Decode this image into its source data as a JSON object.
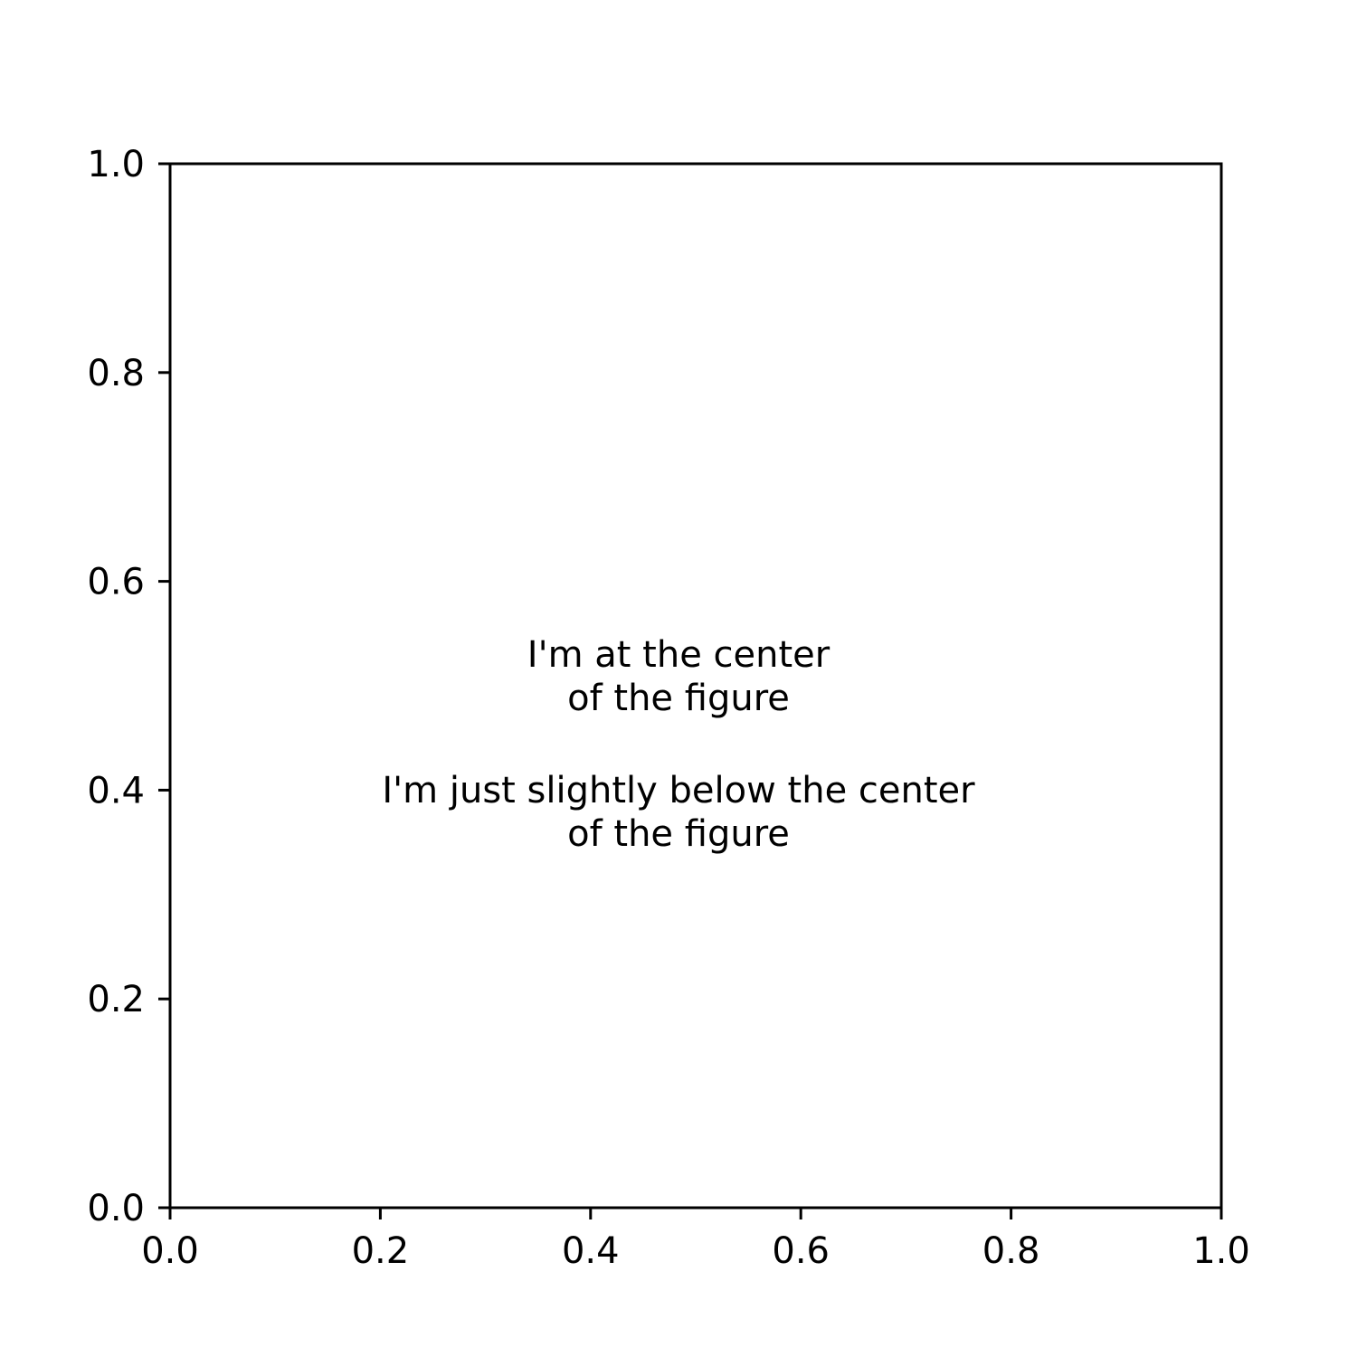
{
  "chart_data": {
    "type": "scatter",
    "title": "",
    "xlabel": "",
    "ylabel": "",
    "xlim": [
      0.0,
      1.0
    ],
    "ylim": [
      0.0,
      1.0
    ],
    "grid": false,
    "xticks": [
      0.0,
      0.2,
      0.4,
      0.6,
      0.8,
      1.0
    ],
    "xtick_labels": [
      "0.0",
      "0.2",
      "0.4",
      "0.6",
      "0.8",
      "1.0"
    ],
    "yticks": [
      0.0,
      0.2,
      0.4,
      0.6,
      0.8,
      1.0
    ],
    "ytick_labels": [
      "0.0",
      "0.2",
      "0.4",
      "0.6",
      "0.8",
      "1.0"
    ],
    "series": [],
    "annotations": [
      {
        "lines": [
          "I'm at the center",
          "of the figure"
        ]
      },
      {
        "lines": [
          "I'm just slightly below the center",
          "of the figure"
        ]
      }
    ],
    "colors": {
      "axes": "#000000",
      "text": "#000000",
      "background": "#ffffff"
    }
  }
}
